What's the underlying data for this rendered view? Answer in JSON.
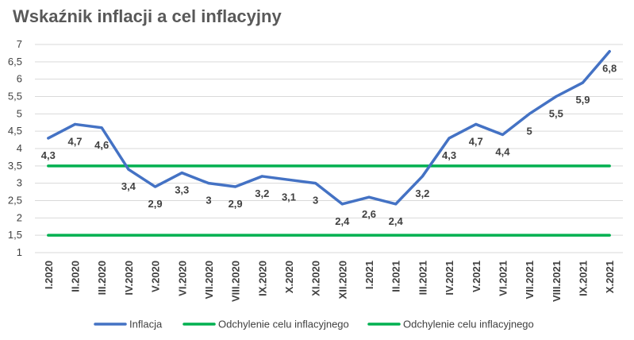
{
  "chart_data": {
    "type": "line",
    "title": "Wskaźnik inflacji a cel inflacyjny",
    "xlabel": "",
    "ylabel": "",
    "ylim": [
      1,
      7
    ],
    "yticks": [
      "1",
      "1,5",
      "2",
      "2,5",
      "3",
      "3,5",
      "4",
      "4,5",
      "5",
      "5,5",
      "6",
      "6,5",
      "7"
    ],
    "grid": true,
    "legend_position": "bottom",
    "categories": [
      "I.2020",
      "II.2020",
      "III.2020",
      "IV.2020",
      "V.2020",
      "VI.2020",
      "VII.2020",
      "VIII.2020",
      "IX.2020",
      "X.2020",
      "XI.2020",
      "XII.2020",
      "I.2021",
      "II.2021",
      "III.2021",
      "IV.2021",
      "V.2021",
      "VI.2021",
      "VII.2021",
      "VIII.2021",
      "IX.2021",
      "X.2021"
    ],
    "series": [
      {
        "name": "Inflacja",
        "color": "#4472C4",
        "values": [
          4.3,
          4.7,
          4.6,
          3.4,
          2.9,
          3.3,
          3,
          2.9,
          3.2,
          3.1,
          3,
          2.4,
          2.6,
          2.4,
          3.2,
          4.3,
          4.7,
          4.4,
          5,
          5.5,
          5.9,
          6.8
        ],
        "data_labels": [
          "4,3",
          "4,7",
          "4,6",
          "3,4",
          "2,9",
          "3,3",
          "3",
          "2,9",
          "3,2",
          "3,1",
          "3",
          "2,4",
          "2,6",
          "2,4",
          "3,2",
          "4,3",
          "4,7",
          "4,4",
          "5",
          "5,5",
          "5,9",
          "6,8"
        ]
      },
      {
        "name": "Odchylenie celu inflacyjnego",
        "color": "#00B050",
        "values": [
          3.5,
          3.5,
          3.5,
          3.5,
          3.5,
          3.5,
          3.5,
          3.5,
          3.5,
          3.5,
          3.5,
          3.5,
          3.5,
          3.5,
          3.5,
          3.5,
          3.5,
          3.5,
          3.5,
          3.5,
          3.5,
          3.5
        ]
      },
      {
        "name": "Odchylenie celu inflacyjnego",
        "color": "#00B050",
        "values": [
          1.5,
          1.5,
          1.5,
          1.5,
          1.5,
          1.5,
          1.5,
          1.5,
          1.5,
          1.5,
          1.5,
          1.5,
          1.5,
          1.5,
          1.5,
          1.5,
          1.5,
          1.5,
          1.5,
          1.5,
          1.5,
          1.5
        ]
      }
    ]
  }
}
